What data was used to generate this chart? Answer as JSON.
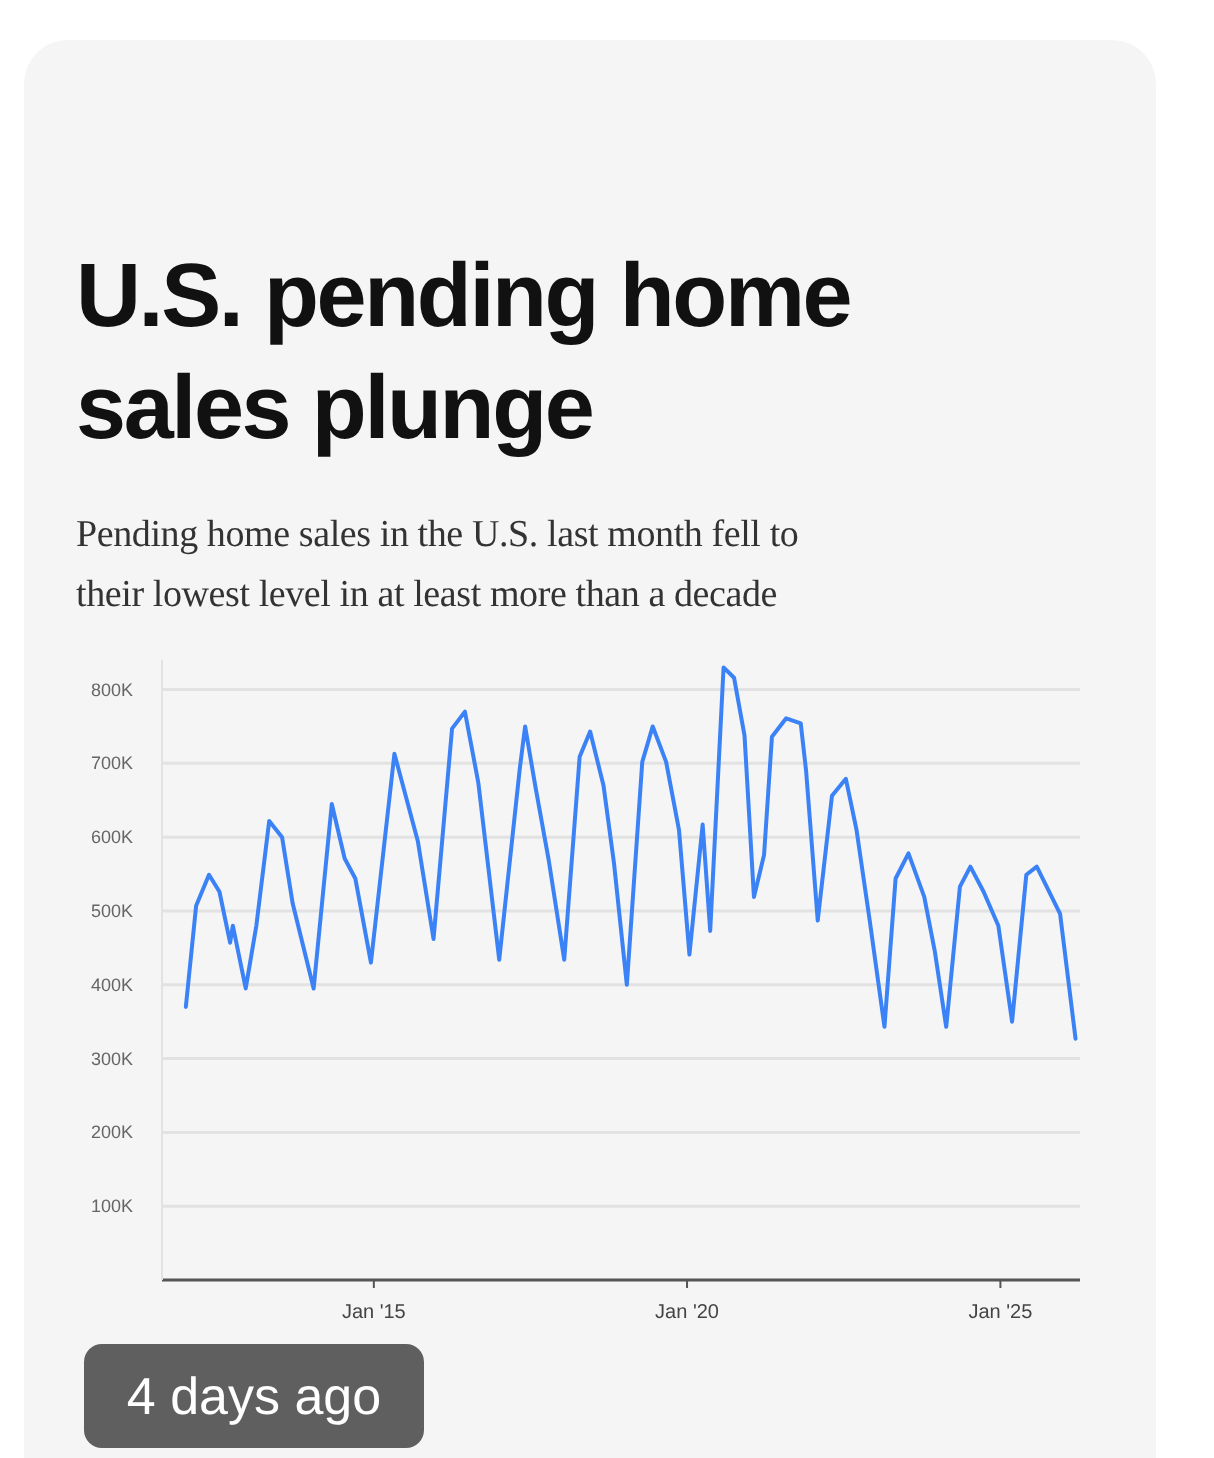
{
  "chart_data": {
    "type": "line",
    "title": "U.S. pending home sales plunge",
    "subtitle": "Pending home sales in the U.S. last month fell to their lowest level in at least more than a decade",
    "x": [
      "2012-01-01",
      "2012-03-01",
      "2012-05-15",
      "2012-07-15",
      "2012-09-15",
      "2012-10-01",
      "2012-12-15",
      "2013-02-15",
      "2013-05-01",
      "2013-07-15",
      "2013-09-15",
      "2014-01-15",
      "2014-05-01",
      "2014-07-15",
      "2014-09-15",
      "2014-12-15",
      "2015-05-01",
      "2015-09-15",
      "2015-12-15",
      "2016-04-01",
      "2016-06-15",
      "2016-09-01",
      "2017-01-01",
      "2017-05-01",
      "2017-06-01",
      "2017-08-01",
      "2017-10-15",
      "2018-01-15",
      "2018-04-15",
      "2018-06-15",
      "2018-09-01",
      "2018-11-01",
      "2019-01-15",
      "2019-04-15",
      "2019-06-15",
      "2019-09-01",
      "2019-11-15",
      "2020-01-15",
      "2020-04-01",
      "2020-05-15",
      "2020-08-01",
      "2020-10-01",
      "2020-12-01",
      "2021-01-25",
      "2021-03-25",
      "2021-05-10",
      "2021-08-01",
      "2021-10-25",
      "2021-11-25",
      "2022-02-01",
      "2022-04-25",
      "2022-07-15",
      "2022-09-15",
      "2022-12-01",
      "2023-02-25",
      "2023-05-01",
      "2023-07-15",
      "2023-10-15",
      "2023-12-15",
      "2024-02-20",
      "2024-05-10",
      "2024-07-10",
      "2024-09-25",
      "2024-12-20",
      "2025-03-10",
      "2025-06-01",
      "2025-08-01",
      "2025-12-15",
      "2026-03-15"
    ],
    "series": [
      {
        "color": "#3b82f6",
        "values": [
          370000,
          507000,
          549000,
          526000,
          457000,
          480000,
          395000,
          480000,
          622000,
          600000,
          510000,
          395000,
          645000,
          571000,
          544000,
          430000,
          713000,
          594000,
          462000,
          747000,
          770000,
          674000,
          434000,
          693000,
          750000,
          667000,
          571000,
          434000,
          709000,
          743000,
          670000,
          565000,
          400000,
          702000,
          750000,
          702000,
          610000,
          441000,
          617000,
          473000,
          830000,
          816000,
          738000,
          519000,
          576000,
          736000,
          761000,
          754000,
          690000,
          487000,
          656000,
          679000,
          610000,
          487000,
          343000,
          544000,
          578000,
          519000,
          446000,
          343000,
          533000,
          560000,
          526000,
          480000,
          350000,
          549000,
          560000,
          496000,
          327000
        ]
      }
    ],
    "xlim": [
      "2011-08-15",
      "2026-04-10"
    ],
    "xticks": [
      {
        "value": "2015-01-01",
        "label": "Jan '15"
      },
      {
        "value": "2020-01-01",
        "label": "Jan '20"
      },
      {
        "value": "2025-01-01",
        "label": "Jan '25"
      }
    ],
    "ylim": [
      0,
      840000
    ],
    "yticks": [
      {
        "value": 100000,
        "label": "100K"
      },
      {
        "value": 200000,
        "label": "200K"
      },
      {
        "value": 300000,
        "label": "300K"
      },
      {
        "value": 400000,
        "label": "400K"
      },
      {
        "value": 500000,
        "label": "500K"
      },
      {
        "value": 600000,
        "label": "600K"
      },
      {
        "value": 700000,
        "label": "700K"
      },
      {
        "value": 800000,
        "label": "800K"
      }
    ],
    "grid": "y",
    "marker": "none",
    "line_style": "solid",
    "annotations": [
      "4 days ago"
    ]
  }
}
